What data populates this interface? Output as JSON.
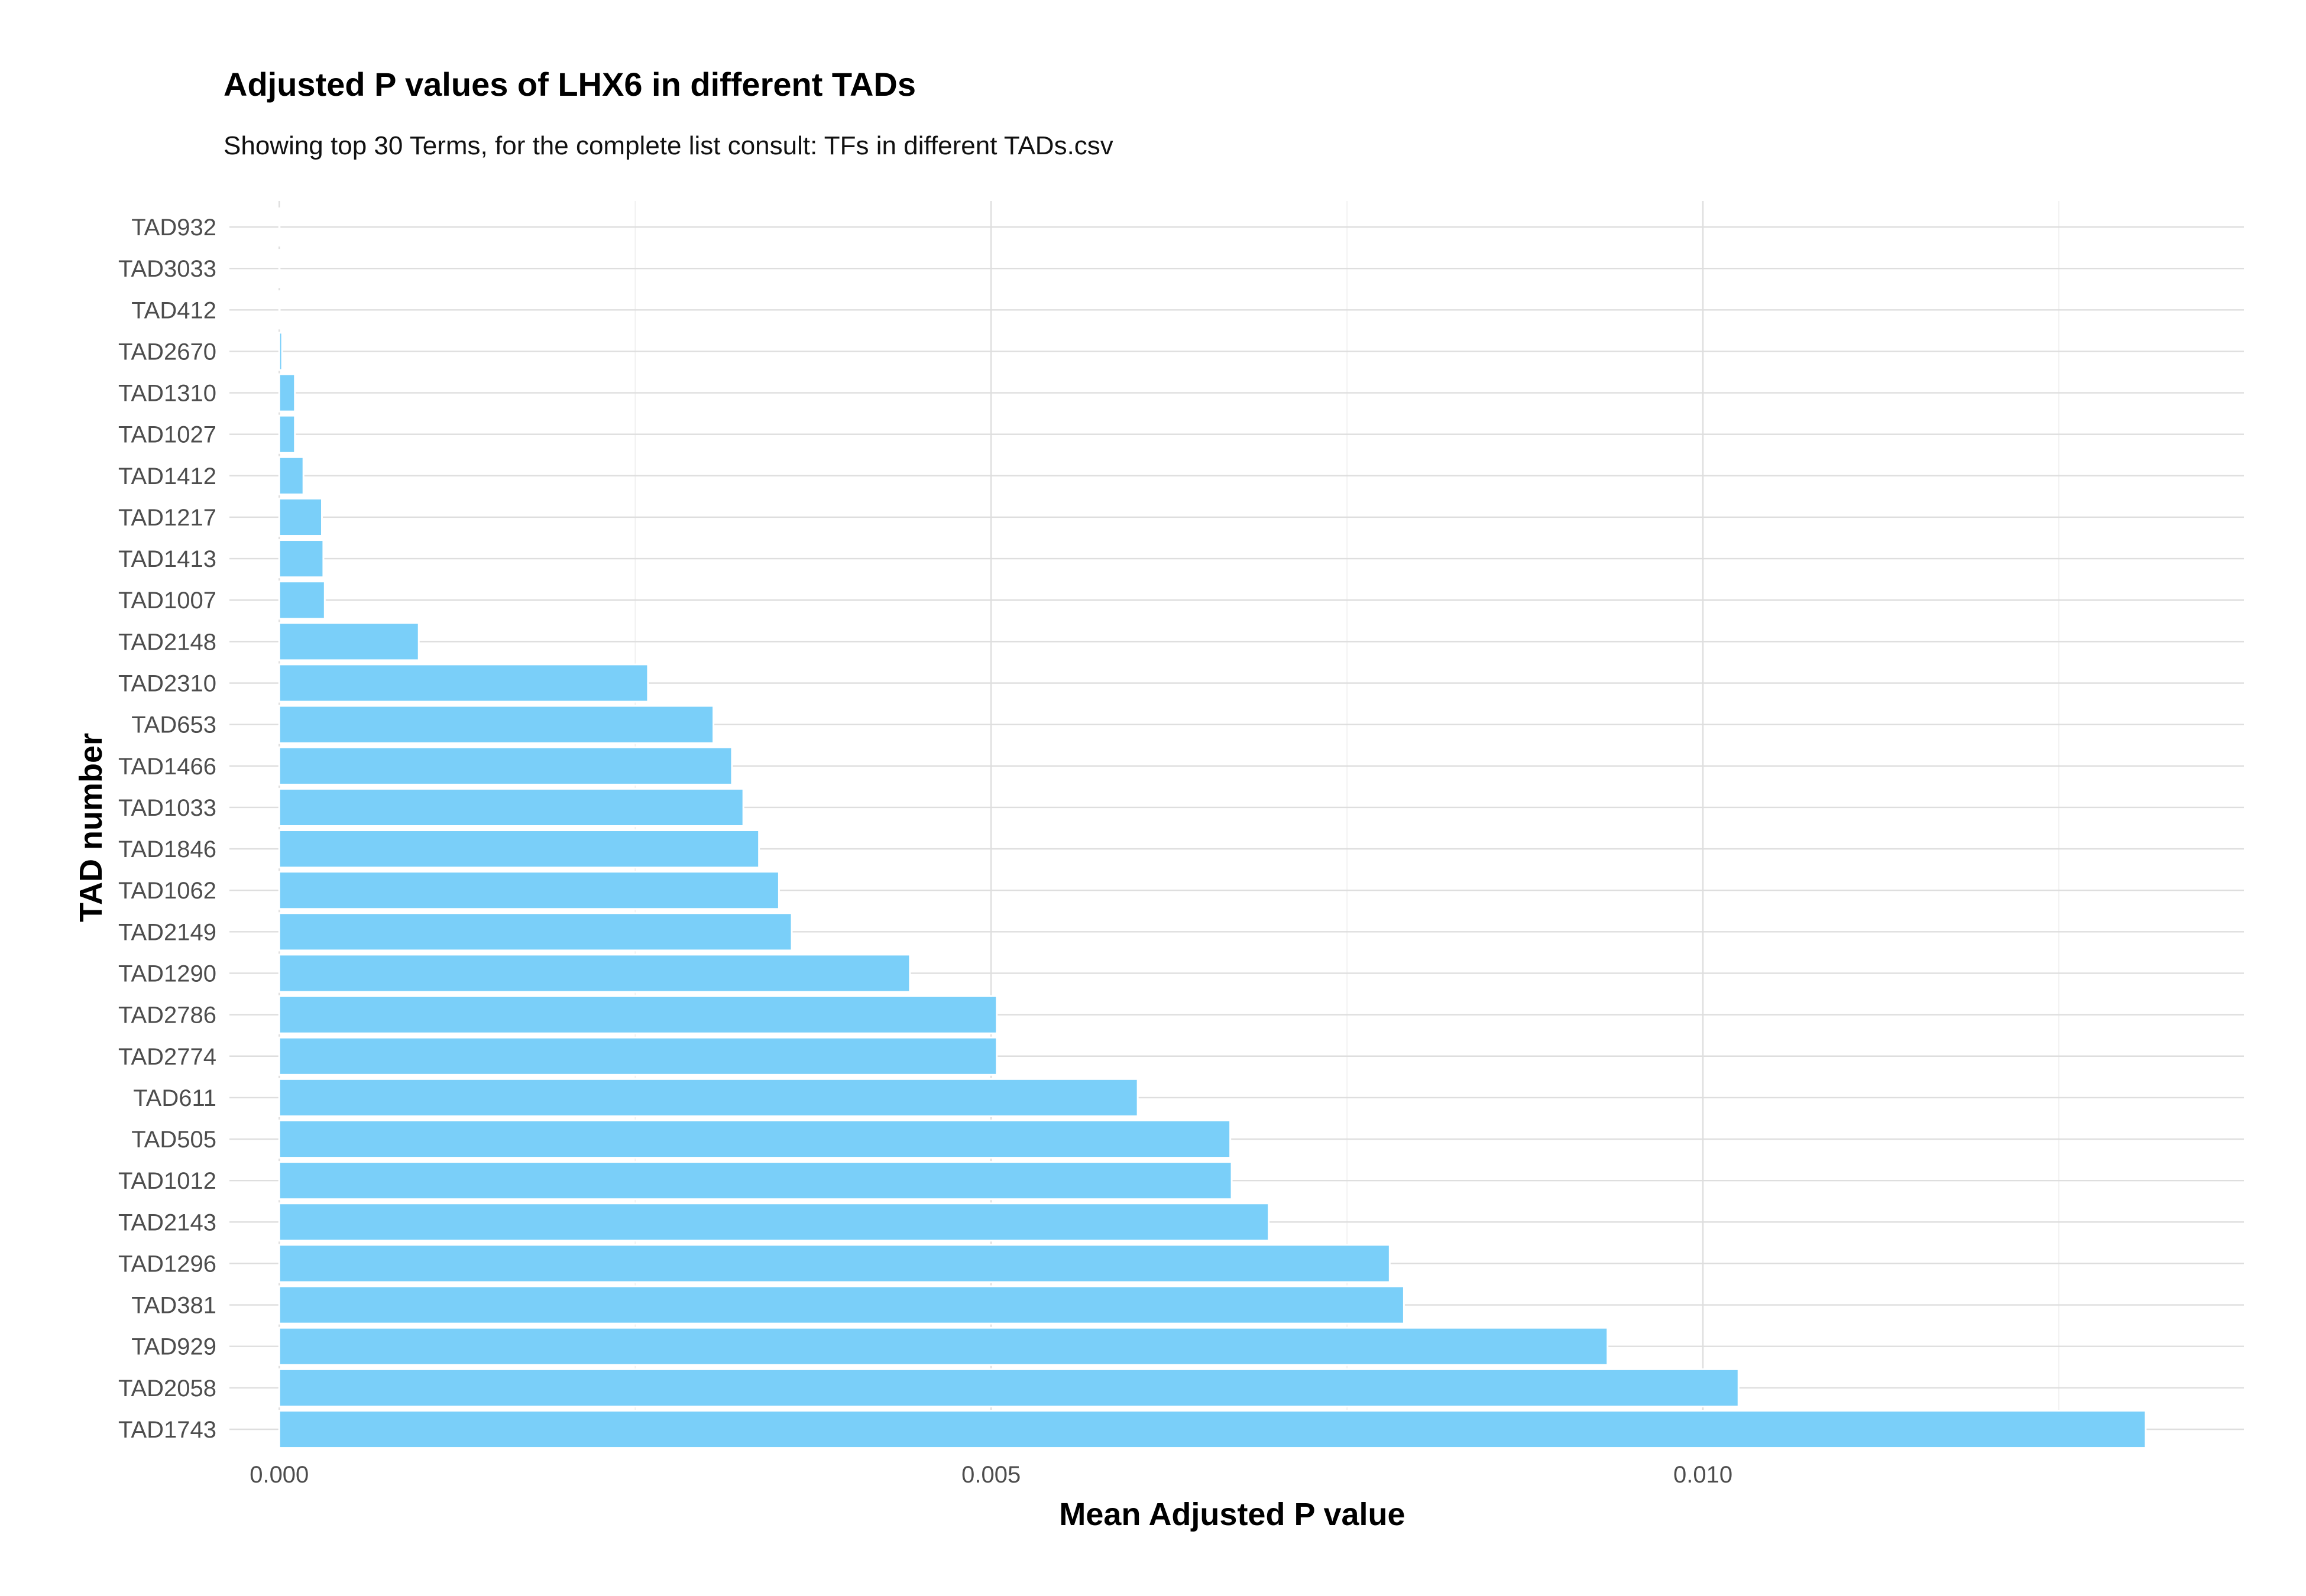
{
  "colors": {
    "bar_fill": "#7acff9",
    "background": "#ffffff"
  },
  "chart_data": {
    "type": "bar",
    "orientation": "horizontal",
    "title": "Adjusted P values of LHX6 in different TADs",
    "subtitle": "Showing top 30 Terms, for the complete list consult: TFs in different TADs.csv",
    "xlabel": "Mean Adjusted P value",
    "ylabel": "TAD number",
    "xlim": [
      -0.00035,
      0.0138
    ],
    "xticks": [
      0.0,
      0.005,
      0.01
    ],
    "xtick_labels": [
      "0.000",
      "0.005",
      "0.010"
    ],
    "grid": true,
    "categories": [
      "TAD932",
      "TAD3033",
      "TAD412",
      "TAD2670",
      "TAD1310",
      "TAD1027",
      "TAD1412",
      "TAD1217",
      "TAD1413",
      "TAD1007",
      "TAD2148",
      "TAD2310",
      "TAD653",
      "TAD1466",
      "TAD1033",
      "TAD1846",
      "TAD1062",
      "TAD2149",
      "TAD1290",
      "TAD2786",
      "TAD2774",
      "TAD611",
      "TAD505",
      "TAD1012",
      "TAD2143",
      "TAD1296",
      "TAD381",
      "TAD929",
      "TAD2058",
      "TAD1743"
    ],
    "values": [
      1e-07,
      1e-06,
      3e-06,
      2e-05,
      0.00011,
      0.00011,
      0.00017,
      0.0003,
      0.00031,
      0.00032,
      0.00098,
      0.00259,
      0.00305,
      0.00318,
      0.00326,
      0.00337,
      0.00351,
      0.0036,
      0.00443,
      0.00504,
      0.00504,
      0.00603,
      0.00668,
      0.00669,
      0.00695,
      0.0078,
      0.0079,
      0.00933,
      0.01025,
      0.01311
    ]
  }
}
